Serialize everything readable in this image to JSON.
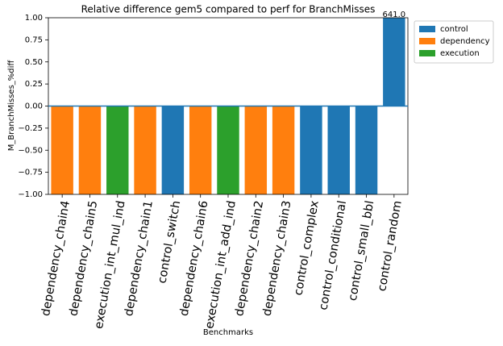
{
  "chart_data": {
    "type": "bar",
    "title": "Relative difference gem5 compared to perf for BranchMisses",
    "x_label": "Benchmarks",
    "y_label": "M_BranchMisses_%diff",
    "categories": [
      "dependency_chain4",
      "dependency_chain5",
      "execution_int_mul_ind",
      "dependency_chain1",
      "control_switch",
      "dependency_chain6",
      "execution_int_add_ind",
      "dependency_chain2",
      "dependency_chain3",
      "control_complex",
      "control_conditional",
      "control_small_bbl",
      "control_random"
    ],
    "series": [
      {
        "name": "control",
        "color": "#1f77b4",
        "values": [
          null,
          null,
          null,
          null,
          -1.0,
          null,
          null,
          null,
          null,
          -1.0,
          -1.0,
          -1.0,
          641.0
        ],
        "value_labels": [
          null,
          null,
          null,
          null,
          null,
          null,
          null,
          null,
          null,
          null,
          null,
          null,
          "641.0"
        ]
      },
      {
        "name": "dependency",
        "color": "#ff7f0e",
        "values": [
          -1.0,
          -1.0,
          null,
          -1.0,
          null,
          -1.0,
          null,
          -1.0,
          -1.0,
          null,
          null,
          null,
          null
        ]
      },
      {
        "name": "execution",
        "color": "#2ca02c",
        "values": [
          null,
          null,
          -1.0,
          null,
          null,
          null,
          -1.0,
          null,
          null,
          null,
          null,
          null,
          null
        ]
      }
    ],
    "ylim": [
      -1.0,
      1.0
    ],
    "yticks": [
      {
        "value": -1.0,
        "label": "−1.00"
      },
      {
        "value": -0.75,
        "label": "−0.75"
      },
      {
        "value": -0.5,
        "label": "−0.50"
      },
      {
        "value": -0.25,
        "label": "−0.25"
      },
      {
        "value": 0.0,
        "label": "0.00"
      },
      {
        "value": 0.25,
        "label": "0.25"
      },
      {
        "value": 0.5,
        "label": "0.50"
      },
      {
        "value": 0.75,
        "label": "0.75"
      },
      {
        "value": 1.0,
        "label": "1.00"
      }
    ],
    "legend": "outside-upper-right"
  }
}
